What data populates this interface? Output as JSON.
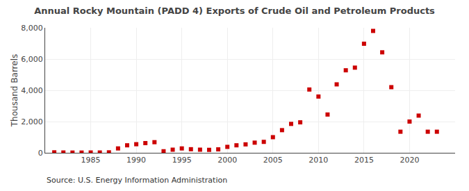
{
  "chart_data": {
    "type": "scatter",
    "title": "Annual Rocky Mountain (PADD 4) Exports of Crude Oil and Petroleum Products",
    "ylabel": "Thousand Barrels",
    "annotations": [
      "Source: U.S. Energy Information Administration"
    ],
    "x": [
      1981,
      1982,
      1983,
      1984,
      1985,
      1986,
      1987,
      1988,
      1989,
      1990,
      1991,
      1992,
      1993,
      1994,
      1995,
      1996,
      1997,
      1998,
      1999,
      2000,
      2001,
      2002,
      2003,
      2004,
      2005,
      2006,
      2007,
      2008,
      2009,
      2010,
      2011,
      2012,
      2013,
      2014,
      2015,
      2016,
      2017,
      2018,
      2019,
      2020,
      2021,
      2022,
      2023
    ],
    "values": [
      30,
      20,
      15,
      15,
      20,
      20,
      30,
      280,
      480,
      550,
      620,
      680,
      100,
      200,
      280,
      230,
      200,
      190,
      220,
      380,
      480,
      540,
      650,
      700,
      1000,
      1450,
      1850,
      1950,
      4050,
      3600,
      2450,
      4380,
      5280,
      5450,
      6980,
      7800,
      6430,
      4200,
      1350,
      2000,
      2380,
      1350,
      1350
    ],
    "color": "#cc0000",
    "marker": "square",
    "xlim": [
      1980,
      2025
    ],
    "ylim": [
      0,
      8000
    ],
    "xticks": [
      1985,
      1990,
      1995,
      2000,
      2005,
      2010,
      2015,
      2020
    ],
    "yticks": [
      0,
      {
        "value": 2000,
        "label": "2,000"
      },
      {
        "value": 4000,
        "label": "4,000"
      },
      {
        "value": 6000,
        "label": "6,000"
      },
      {
        "value": 8000,
        "label": "8,000"
      }
    ],
    "grid": true
  }
}
